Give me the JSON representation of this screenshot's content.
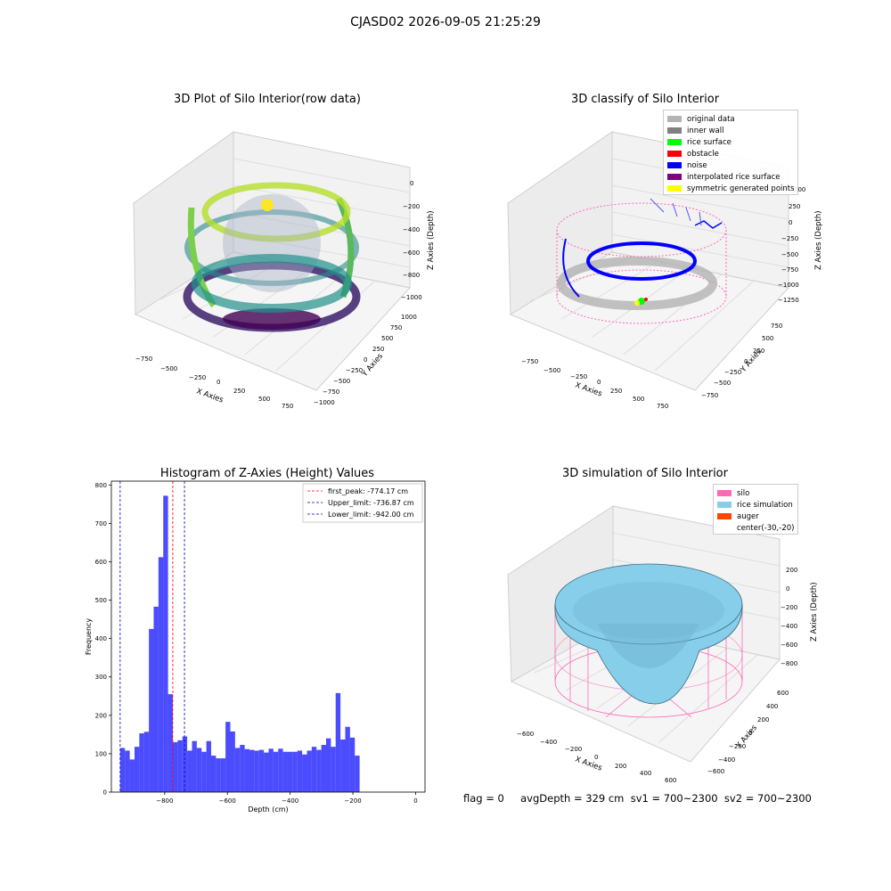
{
  "figure": {
    "suptitle": "CJASD02 2026-09-05 21:25:29",
    "footer": "flag = 0     avgDepth = 329 cm  sv1 = 700~2300  sv2 = 700~2300"
  },
  "panels": {
    "raw": {
      "title": "3D Plot of Silo Interior(row data)",
      "xlabel": "X Axies",
      "ylabel": "Y Axies",
      "zlabel": "Z Axies (Depth)",
      "xticks": [
        "−750",
        "−500",
        "−250",
        "0",
        "250",
        "500",
        "750"
      ],
      "yticks": [
        "1000",
        "750",
        "500",
        "250",
        "0",
        "−250",
        "−500",
        "−750",
        "−1000"
      ],
      "zticks": [
        "0",
        "−200",
        "−400",
        "−600",
        "−800",
        "−1000"
      ]
    },
    "classify": {
      "title": "3D classify of Silo Interior",
      "xlabel": "X Axies",
      "ylabel": "Y Axies",
      "zlabel": "Z Axies (Depth)",
      "xticks": [
        "−750",
        "−500",
        "−250",
        "0",
        "250",
        "500",
        "750"
      ],
      "yticks": [
        "750",
        "500",
        "250",
        "0",
        "−250",
        "−500",
        "−750"
      ],
      "zticks": [
        "500",
        "250",
        "0",
        "−250",
        "−500",
        "−750",
        "−1000",
        "−1250"
      ],
      "legend": [
        {
          "label": "original data",
          "color": "#b3b3b3"
        },
        {
          "label": "inner wall",
          "color": "#808080"
        },
        {
          "label": "rice surface",
          "color": "#00ff00"
        },
        {
          "label": "obstacle",
          "color": "#ff0000"
        },
        {
          "label": "noise",
          "color": "#0000ff"
        },
        {
          "label": "interpolated rice surface",
          "color": "#800080"
        },
        {
          "label": "symmetric generated points",
          "color": "#ffff00"
        }
      ]
    },
    "simulation": {
      "title": "3D simulation of Silo Interior",
      "xlabel": "X Axies",
      "ylabel": "Y Axies",
      "zlabel": "Z Axies (Depth)",
      "xticks": [
        "−600",
        "−400",
        "−200",
        "0",
        "200",
        "400",
        "600"
      ],
      "yticks": [
        "600",
        "400",
        "200",
        "0",
        "−200",
        "−400",
        "−600"
      ],
      "zticks": [
        "200",
        "0",
        "−200",
        "−400",
        "−600",
        "−800"
      ],
      "legend": [
        {
          "label": "silo",
          "color": "#ff69b4"
        },
        {
          "label": "rice simulation",
          "color": "#87ceeb"
        },
        {
          "label": "auger",
          "color": "#ff4500"
        },
        {
          "label": "center(-30,-20)",
          "color": ""
        }
      ]
    }
  },
  "chart_data": {
    "type": "bar",
    "title": "Histogram of Z-Axies (Height) Values",
    "xlabel": "Depth (cm)",
    "ylabel": "Frequency",
    "xlim": [
      -970,
      30
    ],
    "ylim": [
      0,
      810
    ],
    "xticks": [
      -800,
      -600,
      -400,
      -200,
      0
    ],
    "yticks": [
      0,
      100,
      200,
      300,
      400,
      500,
      600,
      700,
      800
    ],
    "bin_start": -942,
    "bin_width": 15.27,
    "color": "#0000ff",
    "values": [
      115,
      108,
      85,
      118,
      153,
      157,
      425,
      483,
      612,
      772,
      255,
      130,
      135,
      145,
      108,
      133,
      115,
      105,
      133,
      95,
      88,
      88,
      183,
      158,
      115,
      123,
      112,
      110,
      108,
      110,
      103,
      113,
      105,
      113,
      105,
      105,
      105,
      108,
      98,
      108,
      118,
      110,
      123,
      140,
      118,
      258,
      137,
      170,
      142,
      95
    ],
    "lines": [
      {
        "label": "first_peak: -774.17 cm",
        "value": -774.17,
        "color": "#ff0000"
      },
      {
        "label": "Upper_limit: -736.87 cm",
        "value": -736.87,
        "color": "#0000cc"
      },
      {
        "label": "Lower_limit: -942.00 cm",
        "value": -942.0,
        "color": "#0000cc"
      }
    ]
  }
}
